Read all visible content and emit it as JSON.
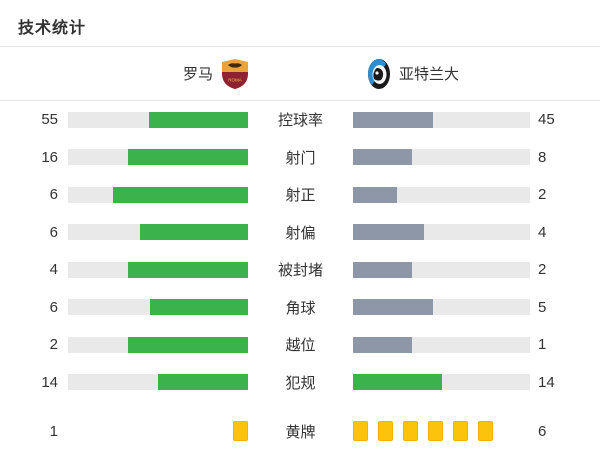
{
  "page": {
    "title": "技术统计"
  },
  "teams": {
    "home": {
      "name": "罗马",
      "crest": "roma-crest"
    },
    "away": {
      "name": "亚特兰大",
      "crest": "atalanta-crest"
    }
  },
  "colors": {
    "home_fill": "#3bb34a",
    "away_fill": "#8d97a7",
    "tie_fill": "#3bb34a",
    "track": "#e9e9e9",
    "card_yellow": "#fcc30d",
    "divider": "#e8e8e8",
    "text": "#333333"
  },
  "chart_data": {
    "type": "bar",
    "title": "技术统计",
    "layout": "mirrored horizontal comparison bars; fill fraction = value / (home + away); home fill anchored right, away fill anchored left; away bar is gray unless tied, last stat rendered as yellow-card icons",
    "categories": [
      "控球率",
      "射门",
      "射正",
      "射偏",
      "被封堵",
      "角球",
      "越位",
      "犯规",
      "黄牌"
    ],
    "series": [
      {
        "name": "罗马",
        "values": [
          55,
          16,
          6,
          6,
          4,
          6,
          2,
          14,
          1
        ]
      },
      {
        "name": "亚特兰大",
        "values": [
          45,
          8,
          2,
          4,
          2,
          5,
          1,
          14,
          6
        ]
      }
    ]
  },
  "stats": {
    "rows": [
      {
        "label": "控球率",
        "home": 55,
        "away": 45,
        "type": "bar",
        "home_fill_color": "#3bb34a",
        "away_fill_color": "#8d97a7"
      },
      {
        "label": "射门",
        "home": 16,
        "away": 8,
        "type": "bar",
        "home_fill_color": "#3bb34a",
        "away_fill_color": "#8d97a7"
      },
      {
        "label": "射正",
        "home": 6,
        "away": 2,
        "type": "bar",
        "home_fill_color": "#3bb34a",
        "away_fill_color": "#8d97a7"
      },
      {
        "label": "射偏",
        "home": 6,
        "away": 4,
        "type": "bar",
        "home_fill_color": "#3bb34a",
        "away_fill_color": "#8d97a7"
      },
      {
        "label": "被封堵",
        "home": 4,
        "away": 2,
        "type": "bar",
        "home_fill_color": "#3bb34a",
        "away_fill_color": "#8d97a7"
      },
      {
        "label": "角球",
        "home": 6,
        "away": 5,
        "type": "bar",
        "home_fill_color": "#3bb34a",
        "away_fill_color": "#8d97a7"
      },
      {
        "label": "越位",
        "home": 2,
        "away": 1,
        "type": "bar",
        "home_fill_color": "#3bb34a",
        "away_fill_color": "#8d97a7"
      },
      {
        "label": "犯规",
        "home": 14,
        "away": 14,
        "type": "bar",
        "home_fill_color": "#3bb34a",
        "away_fill_color": "#3bb34a"
      },
      {
        "label": "黄牌",
        "home": 1,
        "away": 6,
        "type": "cards"
      }
    ]
  }
}
